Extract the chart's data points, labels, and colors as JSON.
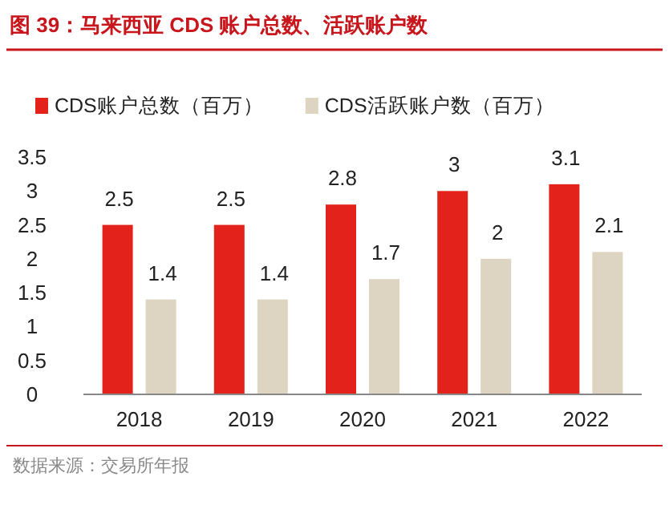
{
  "chart_data": {
    "type": "bar",
    "title": "图 39：马来西亚 CDS 账户总数、活跃账户数",
    "categories": [
      "2018",
      "2019",
      "2020",
      "2021",
      "2022"
    ],
    "series": [
      {
        "name": "CDS账户总数（百万）",
        "color": "#e3231b",
        "values": [
          2.5,
          2.5,
          2.8,
          3,
          3.1
        ]
      },
      {
        "name": "CDS活跃账户数（百万）",
        "color": "#ddd4c1",
        "values": [
          1.4,
          1.4,
          1.7,
          2,
          2.1
        ]
      }
    ],
    "ylim": [
      0,
      3.5
    ],
    "yticks": [
      0,
      0.5,
      1,
      1.5,
      2,
      2.5,
      3,
      3.5
    ],
    "data_labels": true,
    "legend": "top",
    "grid": false,
    "annotations": [
      "数据来源：交易所年报"
    ]
  }
}
